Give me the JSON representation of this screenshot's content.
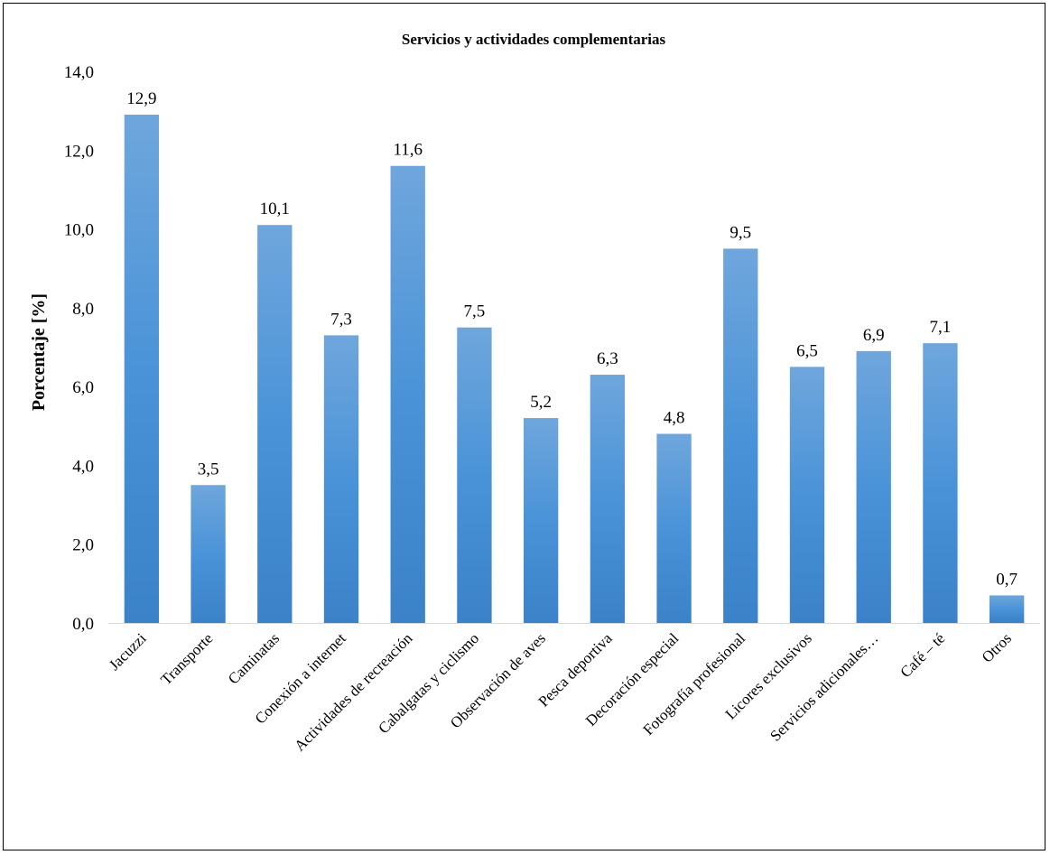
{
  "chart_data": {
    "type": "bar",
    "title": "Servicios y actividades complementarias",
    "xlabel": "",
    "ylabel": "Porcentaje [%]",
    "ylim": [
      0,
      14
    ],
    "yticks": [
      "0,0",
      "2,0",
      "4,0",
      "6,0",
      "8,0",
      "10,0",
      "12,0",
      "14,0"
    ],
    "grid": false,
    "legend": "none",
    "bar_color": "#4a90d6",
    "categories": [
      "Jacuzzi",
      "Transporte",
      "Caminatas",
      "Conexión a internet",
      "Actividades de recreación",
      "Cabalgatas y ciclismo",
      "Observación de aves",
      "Pesca deportiva",
      "Decoración especial",
      "Fotografía profesional",
      "Licores exclusivos",
      "Servicios adicionales…",
      "Café – té",
      "Otros"
    ],
    "values": [
      12.9,
      3.5,
      10.1,
      7.3,
      11.6,
      7.5,
      5.2,
      6.3,
      4.8,
      9.5,
      6.5,
      6.9,
      7.1,
      0.7
    ],
    "data_labels": [
      "12,9",
      "3,5",
      "10,1",
      "7,3",
      "11,6",
      "7,5",
      "5,2",
      "6,3",
      "4,8",
      "9,5",
      "6,5",
      "6,9",
      "7,1",
      "0,7"
    ]
  }
}
